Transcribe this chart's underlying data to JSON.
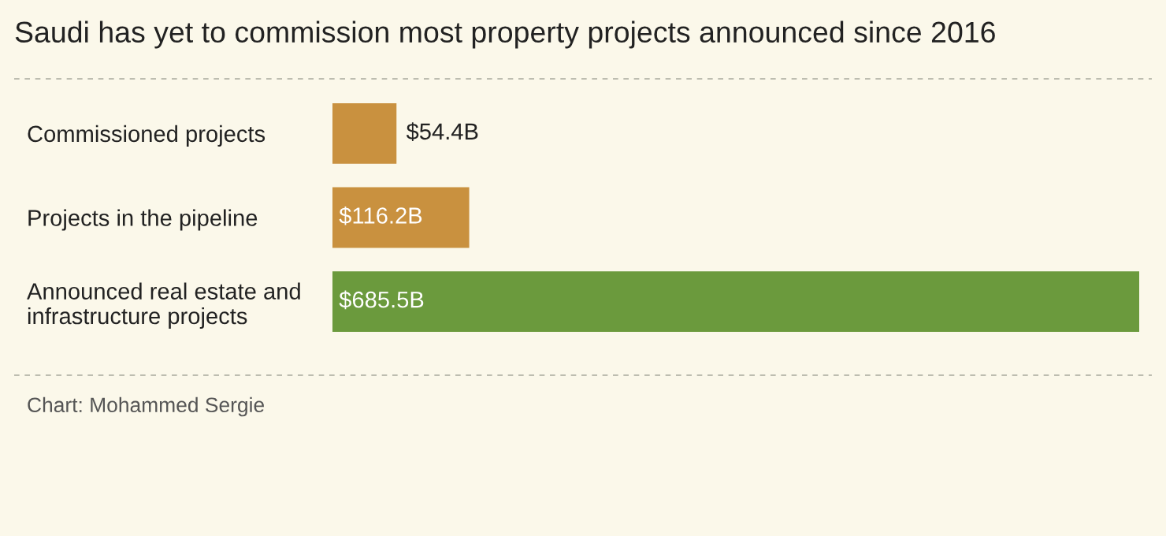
{
  "chart_data": {
    "type": "bar",
    "orientation": "horizontal",
    "title": "Saudi has yet to commission most property projects announced since 2016",
    "categories": [
      "Commissioned projects",
      "Projects in the pipeline",
      "Announced real estate and\ninfrastructure projects"
    ],
    "values": [
      54.4,
      116.2,
      685.5
    ],
    "colors": [
      "#c9913f",
      "#c9913f",
      "#6b9a3d"
    ],
    "value_labels": [
      "$54.4B",
      "$116.2B",
      "$685.5B"
    ],
    "xlim": [
      0,
      685.5
    ],
    "tick_labels": "y",
    "grid": false,
    "legend": false,
    "annotations": [
      "Chart: Mohammed Sergie"
    ]
  }
}
